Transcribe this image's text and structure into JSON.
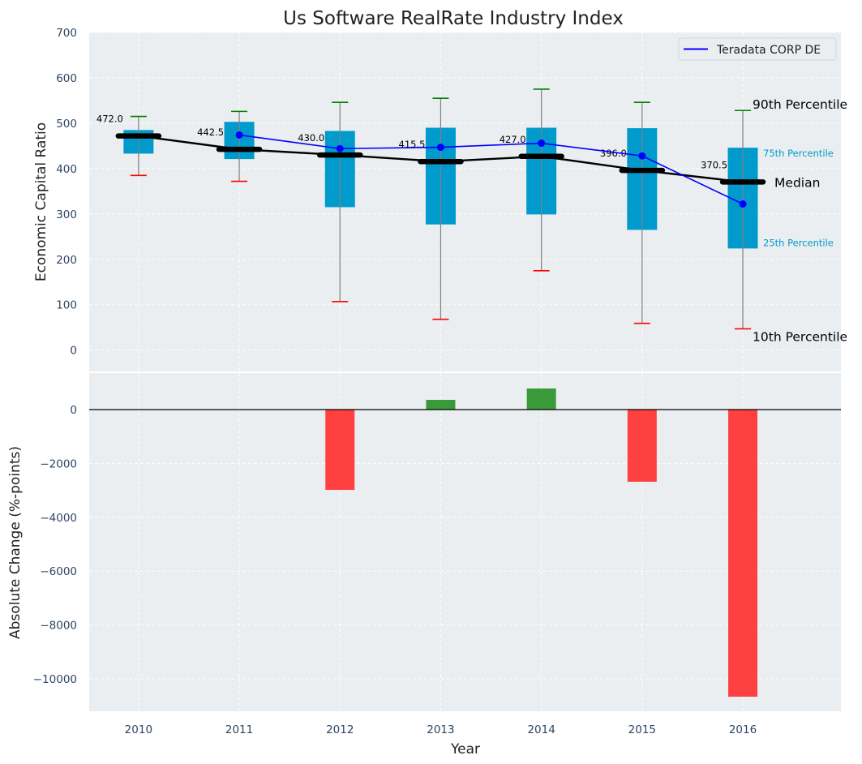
{
  "chart_data": [
    {
      "type": "boxplot",
      "title": "Us Software RealRate Industry Index",
      "xlabel": "",
      "ylabel": "Economic Capital Ratio",
      "ylim": [
        -47,
        700
      ],
      "yticks": [
        0,
        100,
        200,
        300,
        400,
        500,
        600,
        700
      ],
      "grid": true,
      "categories": [
        "2010",
        "2011",
        "2012",
        "2013",
        "2014",
        "2015",
        "2016"
      ],
      "percentiles": {
        "p10": [
          385,
          372,
          107,
          68,
          175,
          59,
          47
        ],
        "p25": [
          433,
          421,
          315,
          277,
          299,
          265,
          224
        ],
        "median": [
          472.0,
          442.5,
          430.0,
          415.5,
          427.0,
          396.0,
          370.5
        ],
        "p75": [
          485,
          503,
          483,
          490,
          490,
          489,
          446
        ],
        "p90": [
          515,
          526,
          546,
          555,
          575,
          546,
          528
        ]
      },
      "median_labels": [
        "472.0",
        "442.5",
        "430.0",
        "415.5",
        "427.0",
        "396.0",
        "370.5"
      ],
      "series": [
        {
          "name": "Teradata CORP DE",
          "color": "#0000ff",
          "values": [
            null,
            474,
            444,
            447,
            456,
            428,
            322
          ]
        }
      ],
      "legend": {
        "position": "top-right",
        "entries": [
          "Teradata CORP DE"
        ]
      },
      "annotations": {
        "p90": "90th Percentile",
        "p75": "75th Percentile",
        "median": "Median",
        "p25": "25th Percentile",
        "p10": "10th Percentile"
      },
      "colors": {
        "box": "#009ACD",
        "median": "#000000",
        "p90_cap": "#008000",
        "p10_cap": "#ff0000",
        "whisker": "#808080",
        "annotation_box": "#009ACD"
      }
    },
    {
      "type": "bar",
      "xlabel": "Year",
      "ylabel": "Absolute Change (%-points)",
      "ylim": [
        -11205,
        1355
      ],
      "yticks": [
        0,
        -2000,
        -4000,
        -6000,
        -8000,
        -10000
      ],
      "ytick_labels": [
        "0",
        "−2000",
        "−4000",
        "−6000",
        "−8000",
        "−10000"
      ],
      "grid": true,
      "categories": [
        "2010",
        "2011",
        "2012",
        "2013",
        "2014",
        "2015",
        "2016"
      ],
      "values": [
        0,
        0,
        -2982,
        361,
        783,
        -2681,
        -10663
      ],
      "colors": {
        "positive": "#3a9a3a",
        "negative": "#ff4040"
      }
    }
  ]
}
